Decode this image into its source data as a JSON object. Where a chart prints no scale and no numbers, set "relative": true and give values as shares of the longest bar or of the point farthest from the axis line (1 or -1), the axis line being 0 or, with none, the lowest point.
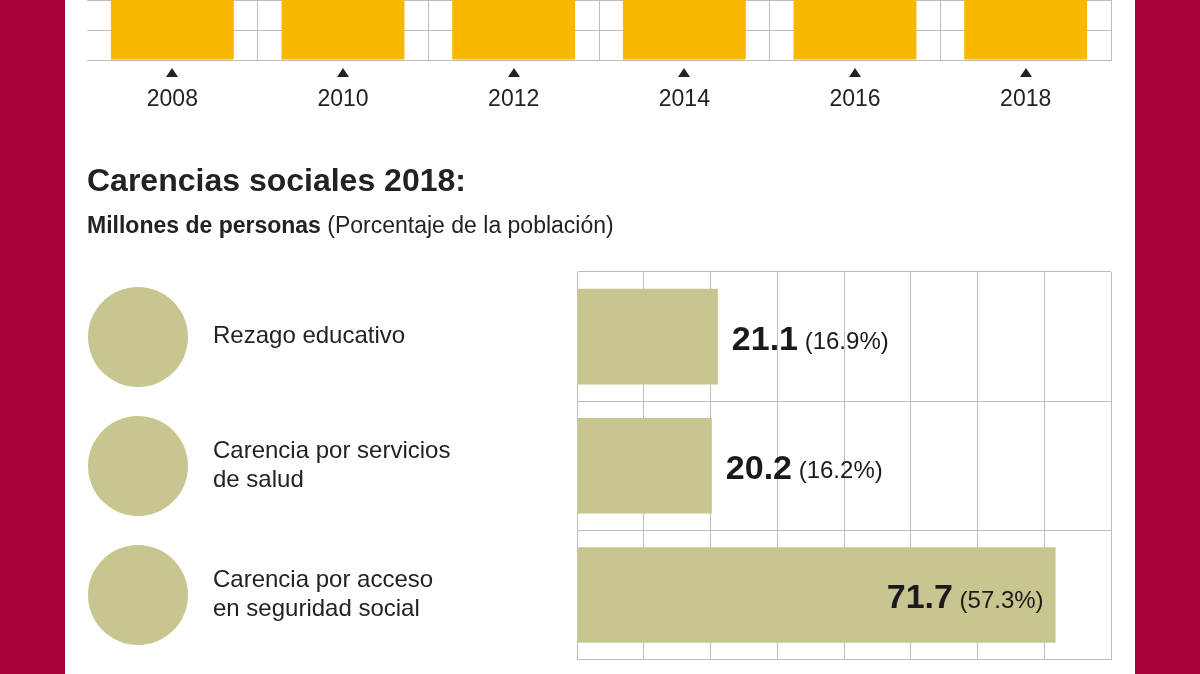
{
  "chart_data": [
    {
      "type": "bar",
      "relative": true,
      "categories": [
        "2008",
        "2010",
        "2012",
        "2014",
        "2016",
        "2018"
      ],
      "values": [
        1,
        1,
        1,
        1,
        1,
        1
      ],
      "color": "#f9b800",
      "grid": true,
      "tick_labels": "x",
      "legend": false
    },
    {
      "type": "bar",
      "orientation": "horizontal",
      "title": "Carencias sociales 2018:",
      "subtitle": "Millones de personas (Porcentaje de la población)",
      "categories": [
        "Rezago educativo",
        "Carencia por servicios de salud",
        "Carencia por acceso en seguridad social"
      ],
      "values": [
        21.1,
        20.2,
        71.7
      ],
      "value_labels": [
        "21.1 (16.9%)",
        "20.2 (16.2%)",
        "71.7 (57.3%)"
      ],
      "color": "#c8c690",
      "xlim": [
        0,
        80
      ],
      "grid": true,
      "tick_labels": "y",
      "legend": false
    }
  ]
}
